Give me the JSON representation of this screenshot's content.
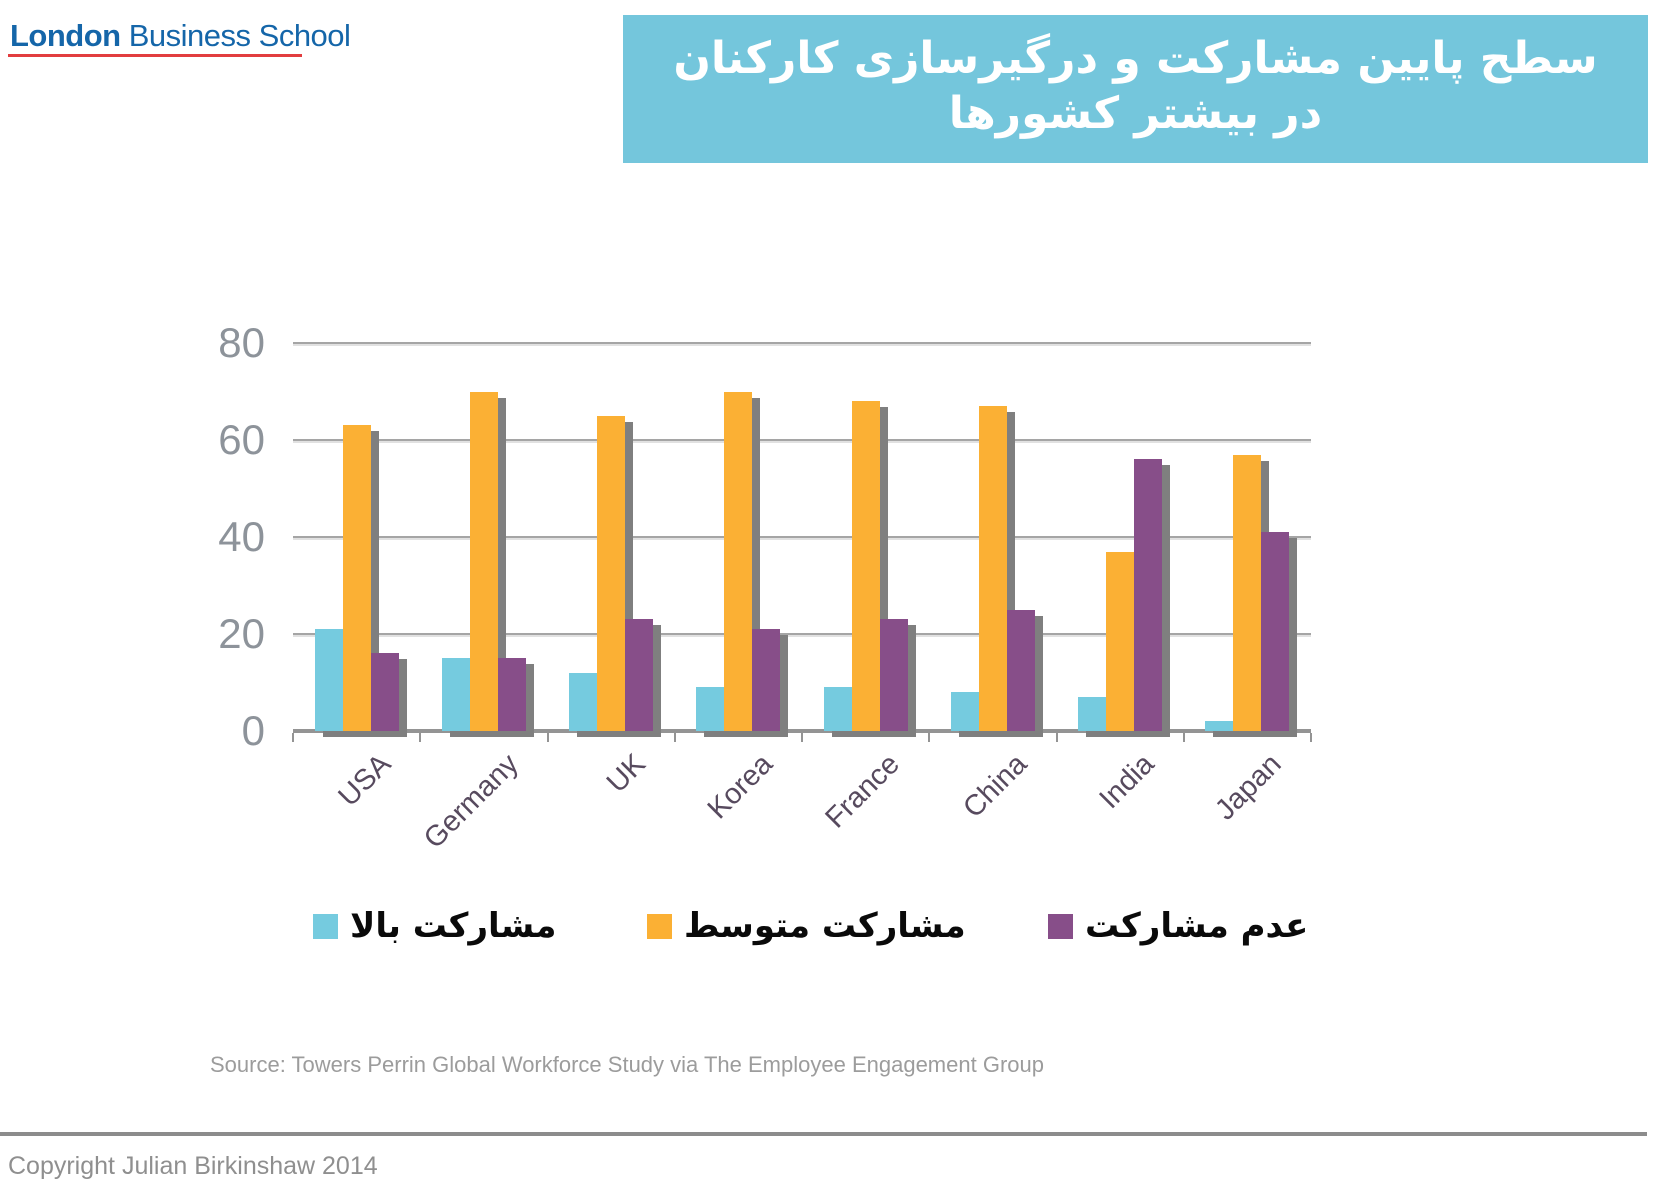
{
  "header": {
    "logo_bold": "London",
    "logo_rest": " Business School"
  },
  "chart_data": {
    "type": "bar",
    "title": "سطح پایین مشارکت و درگیرسازی کارکنان در بیشتر کشورها",
    "categories": [
      "USA",
      "Germany",
      "UK",
      "Korea",
      "France",
      "China",
      "India",
      "Japan"
    ],
    "series": [
      {
        "name": "مشارکت بالا",
        "color": "#75CBDF",
        "values": [
          21,
          15,
          12,
          9,
          9,
          8,
          7,
          2
        ]
      },
      {
        "name": "مشارکت متوسط",
        "color": "#FBB034",
        "values": [
          63,
          70,
          65,
          70,
          68,
          67,
          37,
          57
        ]
      },
      {
        "name": "عدم مشارکت",
        "color": "#874E89",
        "values": [
          16,
          15,
          23,
          21,
          23,
          25,
          56,
          41
        ]
      }
    ],
    "xlabel": "",
    "ylabel": "",
    "ylim": [
      0,
      80
    ],
    "yticks": [
      0,
      20,
      40,
      60,
      80
    ],
    "grid": true,
    "legend_position": "bottom",
    "bar_shadow_color": "#7F7F7F"
  },
  "source_note": "Source: Towers Perrin Global Workforce Study via The Employee Engagement Group",
  "footer": {
    "copyright": "Copyright Julian Birkinshaw 2014"
  },
  "colors": {
    "banner_bg": "#74C6DC",
    "logo_blue": "#1566A9",
    "logo_underline_red": "#E23D3F",
    "grid_gray": "#A5A5A5",
    "axis_gray": "#949494",
    "ytick_label_gray": "#8D939A",
    "category_label": "#574A5E",
    "source_gray": "#9C9C9C",
    "footer_text_gray": "#8F8F8F",
    "footer_line_gray": "#8C8C8C"
  }
}
